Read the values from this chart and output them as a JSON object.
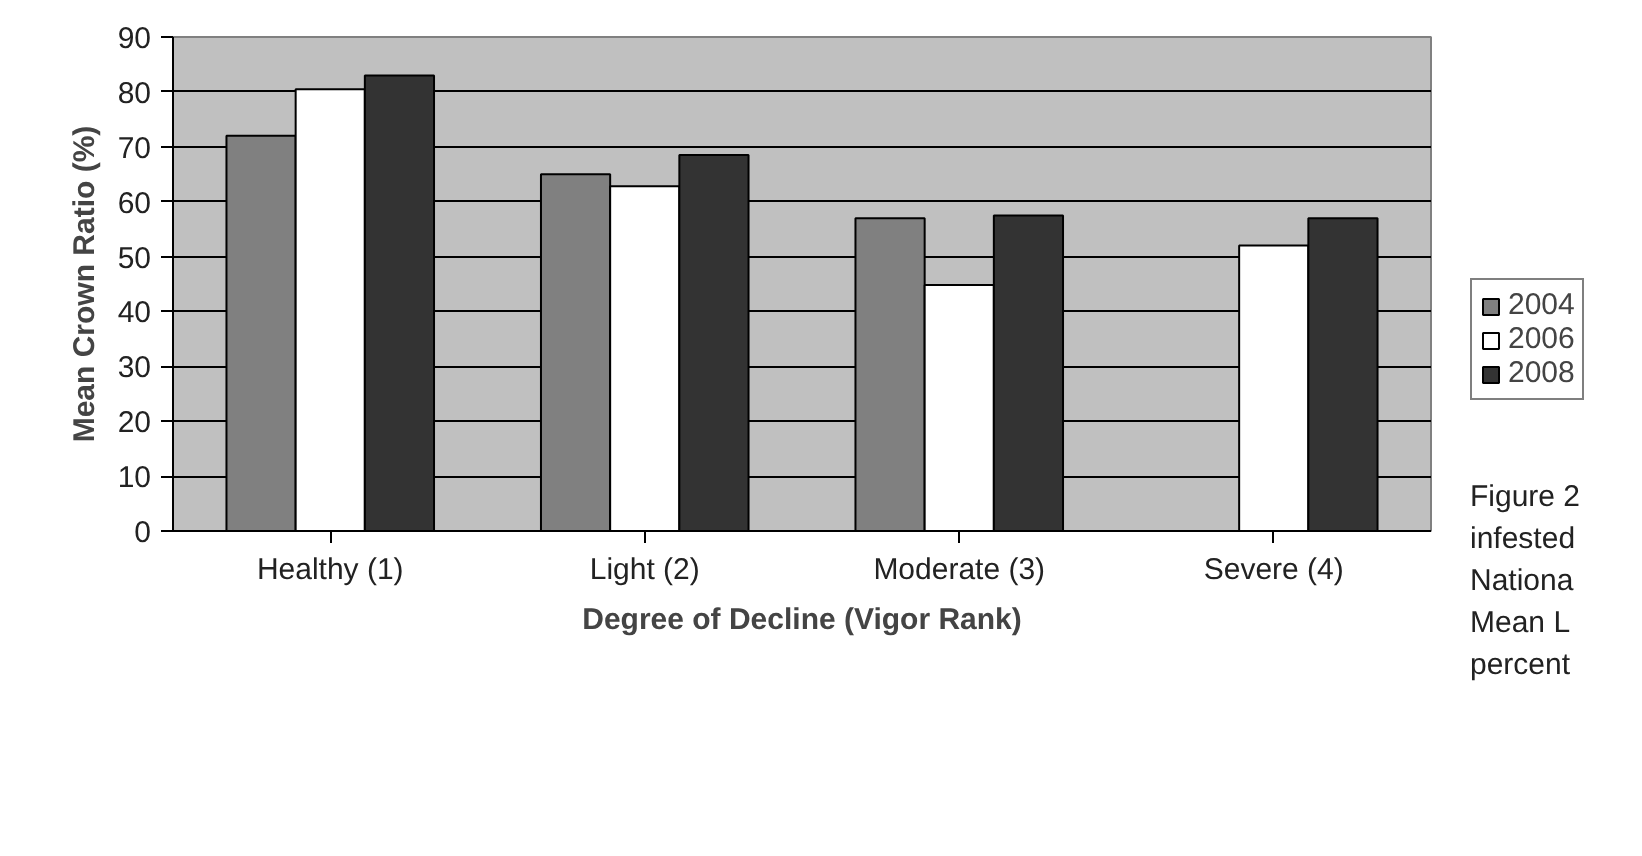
{
  "chart_data": {
    "type": "bar",
    "xlabel": "Degree of Decline (Vigor Rank)",
    "ylabel": "Mean Crown Ratio (%)",
    "categories": [
      "Healthy (1)",
      "Light (2)",
      "Moderate (3)",
      "Severe (4)"
    ],
    "series": [
      {
        "name": "2004",
        "color": "#808080",
        "values": [
          72,
          65,
          57,
          null
        ]
      },
      {
        "name": "2006",
        "color": "#ffffff",
        "values": [
          80.5,
          62.8,
          44.8,
          52
        ]
      },
      {
        "name": "2008",
        "color": "#333333",
        "values": [
          83,
          68.5,
          57.5,
          57
        ]
      }
    ],
    "ylim": [
      0,
      90
    ],
    "yticks": [
      0,
      10,
      20,
      30,
      40,
      50,
      60,
      70,
      80,
      90
    ],
    "grid": "y",
    "legend": "right",
    "annotations": [
      "Figure 2",
      "infested",
      "Nationa",
      "Mean L",
      "percent"
    ]
  }
}
